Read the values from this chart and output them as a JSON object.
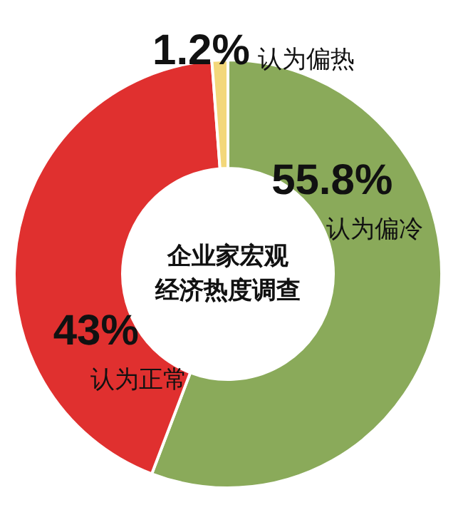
{
  "chart_data": {
    "type": "donut",
    "title": "企业家宏观经济热度调查",
    "categories": [
      "认为偏冷",
      "认为正常",
      "认为偏热"
    ],
    "values": [
      55.8,
      43,
      1.2
    ],
    "value_labels": [
      "55.8%",
      "43%",
      "1.2%"
    ],
    "colors": [
      "#8aaa5a",
      "#e0302f",
      "#f3d77a"
    ]
  }
}
